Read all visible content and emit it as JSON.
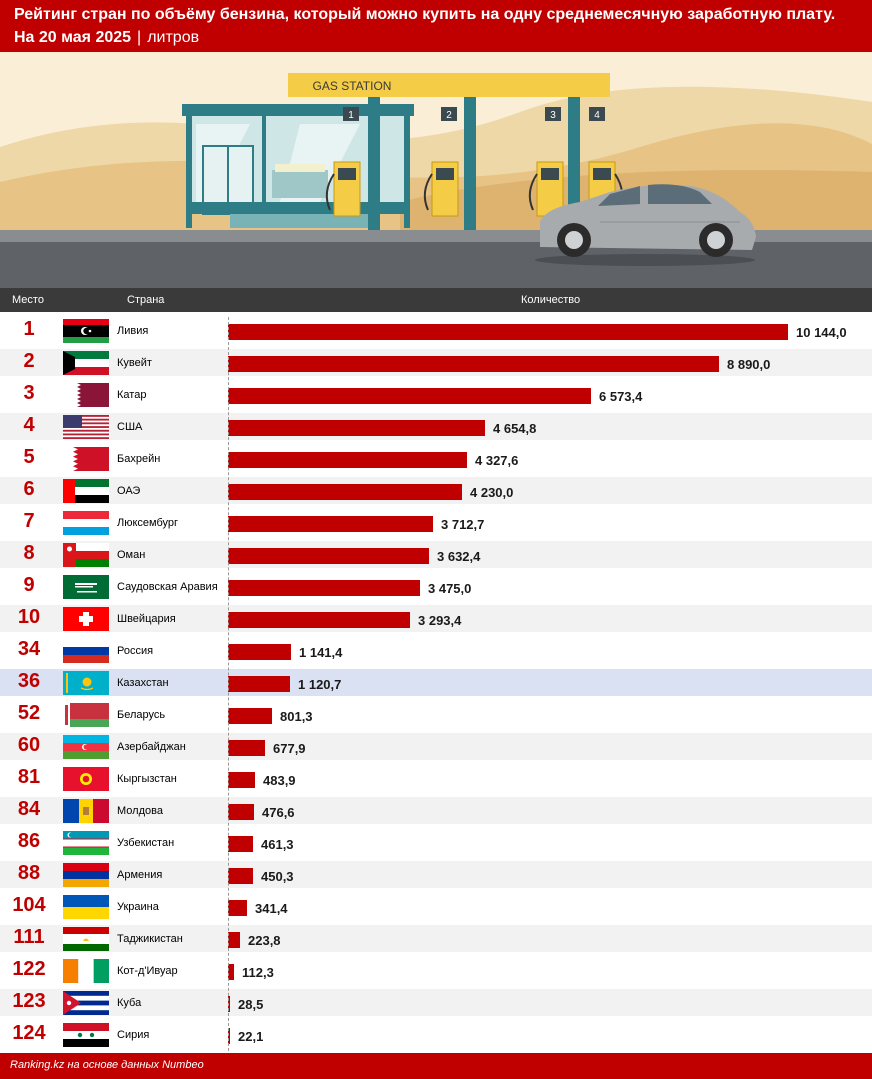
{
  "header": {
    "title": "Рейтинг стран по объёму бензина, который можно купить на одну среднемесячную заработную плату.",
    "date": "На 20 мая 2025",
    "separator": "|",
    "unit": "литров"
  },
  "illustration": {
    "sign": "GAS STATION",
    "pump_numbers": [
      "1",
      "2",
      "3",
      "4"
    ]
  },
  "columns": {
    "rank": "Место",
    "country": "Страна",
    "amount": "Количество"
  },
  "footer": "Ranking.kz на основе данных Numbeo",
  "colors": {
    "accent": "#c00000",
    "highlight_row": "#d9e1f2",
    "header_bar": "#3a3a3a"
  },
  "chart_data": {
    "type": "bar",
    "orientation": "horizontal",
    "highlighted": "Казахстан",
    "categories": [
      "Ливия",
      "Кувейт",
      "Катар",
      "США",
      "Бахрейн",
      "ОАЭ",
      "Люксембург",
      "Оман",
      "Саудовская Аравия",
      "Швейцария",
      "Россия",
      "Казахстан",
      "Беларусь",
      "Азербайджан",
      "Кыргызстан",
      "Молдова",
      "Узбекистан",
      "Армения",
      "Украина",
      "Таджикистан",
      "Кот-д'Ивуар",
      "Куба",
      "Сирия"
    ],
    "ranks": [
      "1",
      "2",
      "3",
      "4",
      "5",
      "6",
      "7",
      "8",
      "9",
      "10",
      "34",
      "36",
      "52",
      "60",
      "81",
      "84",
      "86",
      "88",
      "104",
      "111",
      "122",
      "123",
      "124"
    ],
    "values": [
      10144.0,
      8890.0,
      6573.4,
      4654.8,
      4327.6,
      4230.0,
      3712.7,
      3632.4,
      3475.0,
      3293.4,
      1141.4,
      1120.7,
      801.3,
      677.9,
      483.9,
      476.6,
      461.3,
      450.3,
      341.4,
      223.8,
      112.3,
      28.5,
      22.1
    ],
    "value_labels": [
      "10 144,0",
      "8 890,0",
      "6 573,4",
      "4 654,8",
      "4 327,6",
      "4 230,0",
      "3 712,7",
      "3 632,4",
      "3 475,0",
      "3 293,4",
      "1 141,4",
      "1 120,7",
      "801,3",
      "677,9",
      "483,9",
      "476,6",
      "461,3",
      "450,3",
      "341,4",
      "223,8",
      "112,3",
      "28,5",
      "22,1"
    ],
    "flags": [
      "libya-flag",
      "kuwait-flag",
      "qatar-flag",
      "usa-flag",
      "bahrain-flag",
      "uae-flag",
      "luxembourg-flag",
      "oman-flag",
      "saudi-arabia-flag",
      "switzerland-flag",
      "russia-flag",
      "kazakhstan-flag",
      "belarus-flag",
      "azerbaijan-flag",
      "kyrgyzstan-flag",
      "moldova-flag",
      "uzbekistan-flag",
      "armenia-flag",
      "ukraine-flag",
      "tajikistan-flag",
      "ivory-coast-flag",
      "cuba-flag",
      "syria-flag"
    ],
    "xlim": [
      0,
      10144
    ],
    "grid": false
  }
}
